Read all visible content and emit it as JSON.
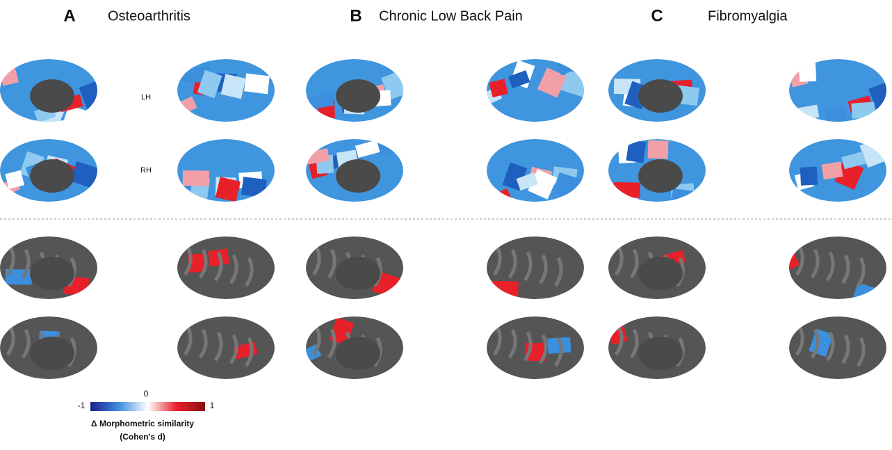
{
  "panels": [
    {
      "label": "A",
      "title": "Osteoarthritis"
    },
    {
      "label": "B",
      "title": "Chronic Low Back Pain"
    },
    {
      "label": "C",
      "title": "Fibromyalgia"
    }
  ],
  "hemispheres": [
    "LH",
    "RH"
  ],
  "colorbar": {
    "ticks": [
      -1,
      0,
      1
    ],
    "label": "Δ Morphometric similarity",
    "sublabel": "(Cohen’s d)"
  }
}
